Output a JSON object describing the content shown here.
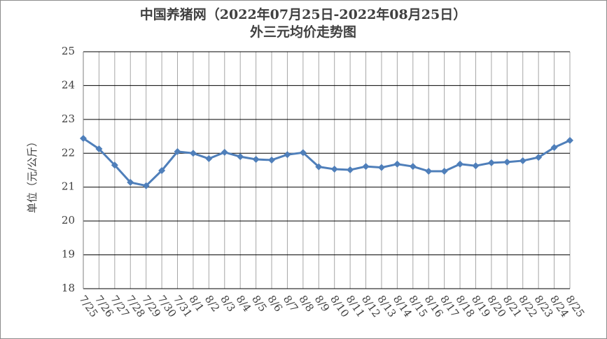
{
  "chart_data": {
    "type": "line",
    "title": "中国养猪网（2022年07月25日-2022年08月25日）",
    "subtitle": "外三元均价走势图",
    "y_label": "单位（元/公斤）",
    "categories": [
      "7/25",
      "7/26",
      "7/27",
      "7/28",
      "7/29",
      "7/30",
      "7/31",
      "8/1",
      "8/2",
      "8/3",
      "8/4",
      "8/5",
      "8/6",
      "8/7",
      "8/8",
      "8/9",
      "8/10",
      "8/11",
      "8/12",
      "8/13",
      "8/14",
      "8/15",
      "8/16",
      "8/17",
      "8/18",
      "8/19",
      "8/20",
      "8/21",
      "8/22",
      "8/23",
      "8/24",
      "8/25"
    ],
    "values": [
      22.44,
      22.13,
      21.65,
      21.14,
      21.04,
      21.49,
      22.05,
      22.0,
      21.84,
      22.03,
      21.9,
      21.82,
      21.8,
      21.96,
      22.02,
      21.6,
      21.53,
      21.51,
      21.61,
      21.58,
      21.68,
      21.61,
      21.47,
      21.47,
      21.68,
      21.63,
      21.72,
      21.74,
      21.78,
      21.88,
      22.17,
      22.38
    ],
    "color": "#4f7fba",
    "ylim": [
      18,
      25
    ],
    "yticks": [
      18,
      19,
      20,
      21,
      22,
      23,
      24,
      25
    ],
    "grid": true
  }
}
